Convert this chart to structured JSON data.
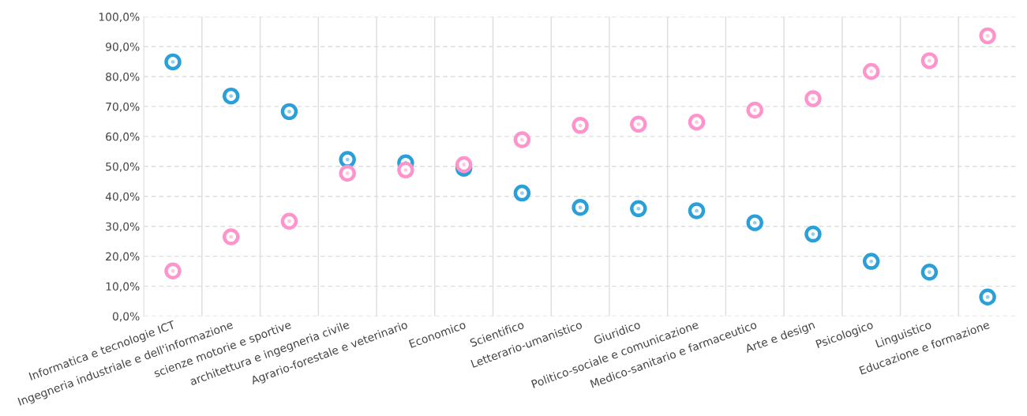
{
  "chart_data": {
    "type": "scatter",
    "marker": "circle",
    "grid": true,
    "categories": [
      "Informatica e tecnologie ICT",
      "Ingegneria industriale e dell'informazione",
      "scienze motorie e sportive",
      "architettura e ingegneria civile",
      "Agrario-forestale e veterinario",
      "Economico",
      "Scientifico",
      "Letterario-umanistico",
      "Giuridico",
      "Politico-sociale e comunicazione",
      "Medico-sanitario e farmaceutico",
      "Arte e design",
      "Psicologico",
      "Linguistico",
      "Educazione e formazione"
    ],
    "series": [
      {
        "color": "#2a9fd8",
        "values": [
          84.9,
          73.5,
          68.3,
          52.3,
          51.2,
          49.4,
          41.1,
          36.3,
          35.9,
          35.2,
          31.2,
          27.4,
          18.3,
          14.7,
          6.4
        ]
      },
      {
        "color": "#ff94cc",
        "values": [
          15.1,
          26.5,
          31.7,
          47.7,
          48.8,
          50.6,
          58.9,
          63.7,
          64.1,
          64.8,
          68.8,
          72.6,
          81.7,
          85.3,
          93.6
        ]
      }
    ],
    "ylim": [
      0,
      100
    ],
    "yticks": [
      {
        "value": 0,
        "label": "0,0%"
      },
      {
        "value": 10,
        "label": "10,0%"
      },
      {
        "value": 20,
        "label": "20,0%"
      },
      {
        "value": 30,
        "label": "30,0%"
      },
      {
        "value": 40,
        "label": "40,0%"
      },
      {
        "value": 50,
        "label": "50,0%"
      },
      {
        "value": 60,
        "label": "60,0%"
      },
      {
        "value": 70,
        "label": "70,0%"
      },
      {
        "value": 80,
        "label": "80,0%"
      },
      {
        "value": 90,
        "label": "90,0%"
      },
      {
        "value": 100,
        "label": "100,0%"
      }
    ]
  }
}
